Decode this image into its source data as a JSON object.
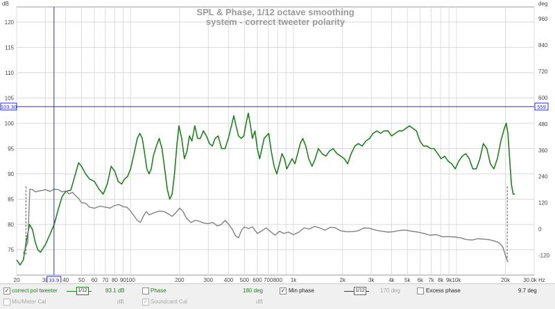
{
  "chart_data": {
    "type": "line",
    "title": "SPL & Phase, 1/12 octave smoothing",
    "subtitle": "system - correct tweeter polarity",
    "x_scale": "log",
    "xlim": [
      20,
      30000
    ],
    "ylim": [
      70,
      123
    ],
    "y2lim": [
      -210,
      1014
    ],
    "ylabel": "dB",
    "y2label": "deg",
    "xlabel": "Hz",
    "grid": true,
    "x_ticks": [
      {
        "v": 20,
        "t": "20"
      },
      {
        "v": 30,
        "t": "30"
      },
      {
        "v": 40,
        "t": "40"
      },
      {
        "v": 50,
        "t": "50"
      },
      {
        "v": 60,
        "t": "60"
      },
      {
        "v": 70,
        "t": "70"
      },
      {
        "v": 80,
        "t": "80"
      },
      {
        "v": 90,
        "t": "90"
      },
      {
        "v": 100,
        "t": "100"
      },
      {
        "v": 200,
        "t": "200"
      },
      {
        "v": 300,
        "t": "300"
      },
      {
        "v": 400,
        "t": "400"
      },
      {
        "v": 500,
        "t": "500"
      },
      {
        "v": 600,
        "t": "600"
      },
      {
        "v": 700,
        "t": "700"
      },
      {
        "v": 800,
        "t": "800"
      },
      {
        "v": 1000,
        "t": "1k"
      },
      {
        "v": 2000,
        "t": "2k"
      },
      {
        "v": 3000,
        "t": "3k"
      },
      {
        "v": 4000,
        "t": "4k"
      },
      {
        "v": 5000,
        "t": "5k"
      },
      {
        "v": 6000,
        "t": "6k"
      },
      {
        "v": 7000,
        "t": "7k"
      },
      {
        "v": 8000,
        "t": "8k"
      },
      {
        "v": 9000,
        "t": "9k"
      },
      {
        "v": 10000,
        "t": "10k"
      },
      {
        "v": 20000,
        "t": "20k"
      },
      {
        "v": 30000,
        "t": "30.0k Hz"
      }
    ],
    "y_ticks": [
      75,
      80,
      85,
      90,
      95,
      100,
      105,
      110,
      115,
      120
    ],
    "y2_ticks": [
      -120,
      0,
      120,
      240,
      360,
      480,
      600,
      720,
      840,
      960
    ],
    "cursor": {
      "x": 33.9,
      "x_label": "33.9",
      "y": 103.3,
      "y_label": "103.30",
      "y2_label": "559"
    },
    "series": [
      {
        "name": "correct pol tweeter",
        "axis": "left",
        "color": "#1f7f1f",
        "points": [
          [
            20,
            73.0
          ],
          [
            21,
            72.0
          ],
          [
            22,
            73.0
          ],
          [
            23,
            77.0
          ],
          [
            24,
            80.0
          ],
          [
            25,
            79.0
          ],
          [
            26,
            76.5
          ],
          [
            27,
            75.0
          ],
          [
            28,
            74.5
          ],
          [
            30,
            76.0
          ],
          [
            32,
            78.0
          ],
          [
            34,
            80.0
          ],
          [
            36,
            83.0
          ],
          [
            38,
            85.5
          ],
          [
            40,
            86.5
          ],
          [
            43,
            86.8
          ],
          [
            45,
            89.0
          ],
          [
            48,
            92.2
          ],
          [
            50,
            91.5
          ],
          [
            53,
            90.0
          ],
          [
            56,
            89.0
          ],
          [
            60,
            88.5
          ],
          [
            64,
            87.0
          ],
          [
            68,
            86.0
          ],
          [
            72,
            88.0
          ],
          [
            76,
            91.5
          ],
          [
            80,
            90.5
          ],
          [
            84,
            88.5
          ],
          [
            88,
            88.0
          ],
          [
            92,
            89.0
          ],
          [
            96,
            89.5
          ],
          [
            100,
            91.0
          ],
          [
            105,
            94.0
          ],
          [
            110,
            97.0
          ],
          [
            114,
            98.0
          ],
          [
            118,
            97.0
          ],
          [
            122,
            94.0
          ],
          [
            126,
            91.0
          ],
          [
            130,
            90.0
          ],
          [
            134,
            91.0
          ],
          [
            138,
            93.5
          ],
          [
            144,
            95.5
          ],
          [
            150,
            97.0
          ],
          [
            156,
            95.0
          ],
          [
            162,
            91.0
          ],
          [
            168,
            87.0
          ],
          [
            174,
            85.0
          ],
          [
            180,
            86.0
          ],
          [
            186,
            90.0
          ],
          [
            193,
            96.0
          ],
          [
            198,
            99.5
          ],
          [
            206,
            97.0
          ],
          [
            214,
            93.0
          ],
          [
            222,
            94.5
          ],
          [
            230,
            97.5
          ],
          [
            238,
            96.5
          ],
          [
            248,
            99.5
          ],
          [
            258,
            97.0
          ],
          [
            268,
            97.0
          ],
          [
            280,
            98.5
          ],
          [
            292,
            97.5
          ],
          [
            305,
            96.0
          ],
          [
            318,
            95.5
          ],
          [
            330,
            97.0
          ],
          [
            345,
            97.5
          ],
          [
            362,
            95.0
          ],
          [
            380,
            95.0
          ],
          [
            398,
            97.0
          ],
          [
            416,
            99.5
          ],
          [
            430,
            101.5
          ],
          [
            444,
            99.5
          ],
          [
            460,
            97.5
          ],
          [
            478,
            97.0
          ],
          [
            496,
            97.5
          ],
          [
            512,
            100.0
          ],
          [
            528,
            102.0
          ],
          [
            545,
            99.5
          ],
          [
            560,
            97.0
          ],
          [
            580,
            98.5
          ],
          [
            600,
            95.0
          ],
          [
            620,
            93.0
          ],
          [
            640,
            95.0
          ],
          [
            660,
            97.0
          ],
          [
            682,
            97.5
          ],
          [
            704,
            98.0
          ],
          [
            730,
            94.5
          ],
          [
            760,
            91.5
          ],
          [
            790,
            90.0
          ],
          [
            820,
            92.0
          ],
          [
            850,
            94.0
          ],
          [
            880,
            93.0
          ],
          [
            910,
            91.0
          ],
          [
            945,
            92.0
          ],
          [
            980,
            93.0
          ],
          [
            1020,
            92.0
          ],
          [
            1060,
            94.0
          ],
          [
            1100,
            96.0
          ],
          [
            1140,
            97.0
          ],
          [
            1190,
            95.5
          ],
          [
            1240,
            93.0
          ],
          [
            1300,
            91.5
          ],
          [
            1360,
            93.0
          ],
          [
            1420,
            95.0
          ],
          [
            1500,
            94.0
          ],
          [
            1580,
            93.5
          ],
          [
            1660,
            94.5
          ],
          [
            1750,
            95.0
          ],
          [
            1850,
            94.0
          ],
          [
            1950,
            93.5
          ],
          [
            2050,
            93.0
          ],
          [
            2150,
            92.0
          ],
          [
            2260,
            94.0
          ],
          [
            2380,
            95.5
          ],
          [
            2500,
            96.0
          ],
          [
            2640,
            95.5
          ],
          [
            2780,
            96.5
          ],
          [
            2930,
            97.0
          ],
          [
            3080,
            98.0
          ],
          [
            3250,
            98.5
          ],
          [
            3420,
            98.0
          ],
          [
            3600,
            98.5
          ],
          [
            3800,
            98.5
          ],
          [
            4000,
            97.5
          ],
          [
            4210,
            98.0
          ],
          [
            4430,
            98.5
          ],
          [
            4660,
            98.5
          ],
          [
            4900,
            99.0
          ],
          [
            5150,
            99.5
          ],
          [
            5400,
            99.0
          ],
          [
            5680,
            98.5
          ],
          [
            5970,
            96.5
          ],
          [
            6280,
            95.5
          ],
          [
            6600,
            95.5
          ],
          [
            6940,
            95.0
          ],
          [
            7300,
            95.0
          ],
          [
            7670,
            94.0
          ],
          [
            8060,
            93.0
          ],
          [
            8470,
            93.5
          ],
          [
            8900,
            92.5
          ],
          [
            9350,
            92.0
          ],
          [
            9830,
            91.0
          ],
          [
            10330,
            92.5
          ],
          [
            10860,
            93.5
          ],
          [
            11410,
            94.0
          ],
          [
            11990,
            93.0
          ],
          [
            12600,
            91.0
          ],
          [
            13240,
            91.0
          ],
          [
            13920,
            93.0
          ],
          [
            14620,
            96.0
          ],
          [
            15370,
            95.0
          ],
          [
            16150,
            92.0
          ],
          [
            16970,
            91.0
          ],
          [
            17830,
            93.0
          ],
          [
            18740,
            96.5
          ],
          [
            19690,
            99.0
          ],
          [
            20200,
            100.0
          ],
          [
            20690,
            98.0
          ],
          [
            21200,
            93.0
          ],
          [
            21740,
            88.0
          ],
          [
            22280,
            86.0
          ],
          [
            22840,
            86.0
          ]
        ]
      },
      {
        "name": "Phase",
        "axis": "right",
        "color": "#808080",
        "points": [
          [
            22,
            -112
          ],
          [
            22.8,
            -82
          ],
          [
            23.4,
            -60
          ],
          [
            24.1,
            182
          ],
          [
            25,
            180
          ],
          [
            26,
            170
          ],
          [
            28,
            175
          ],
          [
            30,
            180
          ],
          [
            32,
            172
          ],
          [
            34,
            182
          ],
          [
            36,
            180
          ],
          [
            38,
            170
          ],
          [
            40,
            174
          ],
          [
            42,
            160
          ],
          [
            44,
            168
          ],
          [
            46,
            152
          ],
          [
            48,
            140
          ],
          [
            50,
            120
          ],
          [
            53,
            118
          ],
          [
            56,
            100
          ],
          [
            60,
            95
          ],
          [
            65,
            105
          ],
          [
            70,
            100
          ],
          [
            75,
            96
          ],
          [
            80,
            108
          ],
          [
            85,
            112
          ],
          [
            90,
            102
          ],
          [
            95,
            100
          ],
          [
            100,
            82
          ],
          [
            105,
            60
          ],
          [
            110,
            40
          ],
          [
            115,
            30
          ],
          [
            120,
            60
          ],
          [
            125,
            80
          ],
          [
            130,
            65
          ],
          [
            140,
            75
          ],
          [
            150,
            82
          ],
          [
            160,
            80
          ],
          [
            170,
            70
          ],
          [
            180,
            58
          ],
          [
            190,
            75
          ],
          [
            200,
            96
          ],
          [
            210,
            80
          ],
          [
            220,
            50
          ],
          [
            235,
            30
          ],
          [
            250,
            40
          ],
          [
            265,
            35
          ],
          [
            280,
            28
          ],
          [
            300,
            25
          ],
          [
            320,
            30
          ],
          [
            340,
            15
          ],
          [
            360,
            20
          ],
          [
            380,
            40
          ],
          [
            400,
            22
          ],
          [
            420,
            0
          ],
          [
            440,
            -30
          ],
          [
            460,
            -40
          ],
          [
            480,
            -5
          ],
          [
            500,
            10
          ],
          [
            530,
            2
          ],
          [
            560,
            10
          ],
          [
            600,
            -20
          ],
          [
            640,
            -8
          ],
          [
            680,
            5
          ],
          [
            720,
            -10
          ],
          [
            770,
            -28
          ],
          [
            820,
            -10
          ],
          [
            870,
            -20
          ],
          [
            930,
            -14
          ],
          [
            1000,
            -26
          ],
          [
            1080,
            -14
          ],
          [
            1160,
            5
          ],
          [
            1250,
            0
          ],
          [
            1350,
            12
          ],
          [
            1450,
            5
          ],
          [
            1560,
            -5
          ],
          [
            1680,
            8
          ],
          [
            1800,
            6
          ],
          [
            1950,
            -8
          ],
          [
            2100,
            -12
          ],
          [
            2300,
            -12
          ],
          [
            2500,
            -8
          ],
          [
            2700,
            5
          ],
          [
            2900,
            4
          ],
          [
            3200,
            -5
          ],
          [
            3500,
            -10
          ],
          [
            3800,
            -14
          ],
          [
            4100,
            -12
          ],
          [
            4500,
            -6
          ],
          [
            4900,
            -5
          ],
          [
            5300,
            -10
          ],
          [
            5800,
            -14
          ],
          [
            6300,
            -20
          ],
          [
            6900,
            -28
          ],
          [
            7500,
            -25
          ],
          [
            8200,
            -35
          ],
          [
            8900,
            -34
          ],
          [
            9700,
            -36
          ],
          [
            10600,
            -40
          ],
          [
            11500,
            -48
          ],
          [
            12500,
            -50
          ],
          [
            13500,
            -44
          ],
          [
            14600,
            -46
          ],
          [
            15800,
            -48
          ],
          [
            17000,
            -54
          ],
          [
            18200,
            -62
          ],
          [
            19200,
            -80
          ],
          [
            20000,
            -120
          ],
          [
            20500,
            -145
          ],
          [
            20800,
            -150
          ]
        ]
      }
    ],
    "markers": [
      {
        "x": 22.8,
        "y_top": 87.5,
        "y_bottom": 74.0
      },
      {
        "x": 20500,
        "y_top": 87.5,
        "y_bottom": 73.0
      }
    ]
  },
  "legend": {
    "row1": {
      "trace_checked": "✓",
      "trace_name": "correct pol tweeter",
      "smoothing": "1/12",
      "trace_value": "83.1 dB",
      "phase_label": "Phase",
      "phase_value": "180 deg",
      "min_phase_checked": "✓",
      "min_phase_label": "Min phase",
      "min_phase_smoothing": "1/12",
      "min_phase_value": "170 deg",
      "excess_phase_label": "Excess phase",
      "excess_phase_value": "9.7 deg"
    },
    "row2": {
      "mic_cal_label": "Mic/Meter Cal",
      "mic_cal_unit": "dB",
      "soundcard_checked": "✓",
      "soundcard_label": "Soundcard Cal",
      "soundcard_unit": "dB"
    }
  }
}
